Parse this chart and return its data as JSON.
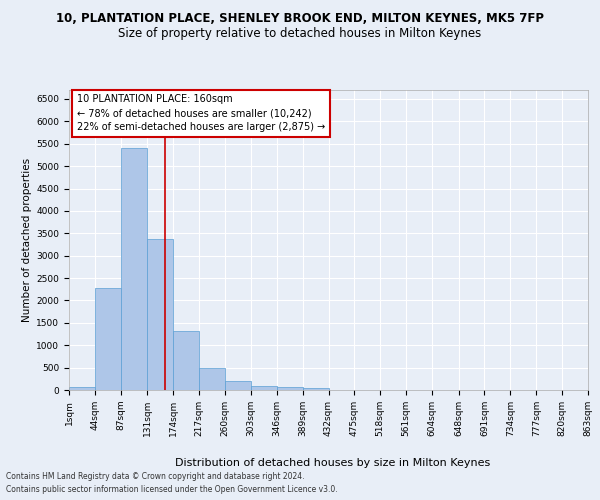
{
  "title1": "10, PLANTATION PLACE, SHENLEY BROOK END, MILTON KEYNES, MK5 7FP",
  "title2": "Size of property relative to detached houses in Milton Keynes",
  "xlabel": "Distribution of detached houses by size in Milton Keynes",
  "ylabel": "Number of detached properties",
  "property_size": 160,
  "vline_x": 160,
  "annotation_title": "10 PLANTATION PLACE: 160sqm",
  "annotation_line1": "← 78% of detached houses are smaller (10,242)",
  "annotation_line2": "22% of semi-detached houses are larger (2,875) →",
  "bin_edges": [
    1,
    44,
    87,
    131,
    174,
    217,
    260,
    303,
    346,
    389,
    432,
    475,
    518,
    561,
    604,
    648,
    691,
    734,
    777,
    820,
    863
  ],
  "bar_heights": [
    75,
    2280,
    5400,
    3380,
    1310,
    490,
    205,
    95,
    60,
    40,
    0,
    0,
    0,
    0,
    0,
    0,
    0,
    0,
    0,
    0
  ],
  "bar_color": "#aec6e8",
  "bar_edge_color": "#5a9fd4",
  "vline_color": "#cc0000",
  "ylim": [
    0,
    6700
  ],
  "yticks": [
    0,
    500,
    1000,
    1500,
    2000,
    2500,
    3000,
    3500,
    4000,
    4500,
    5000,
    5500,
    6000,
    6500
  ],
  "footer1": "Contains HM Land Registry data © Crown copyright and database right 2024.",
  "footer2": "Contains public sector information licensed under the Open Government Licence v3.0.",
  "bg_color": "#e8eef7",
  "grid_color": "#ffffff",
  "title_fontsize": 8.5,
  "subtitle_fontsize": 8.5,
  "tick_label_fontsize": 6.5,
  "ylabel_fontsize": 7.5,
  "xlabel_fontsize": 8,
  "footer_fontsize": 5.5,
  "annotation_fontsize": 7
}
